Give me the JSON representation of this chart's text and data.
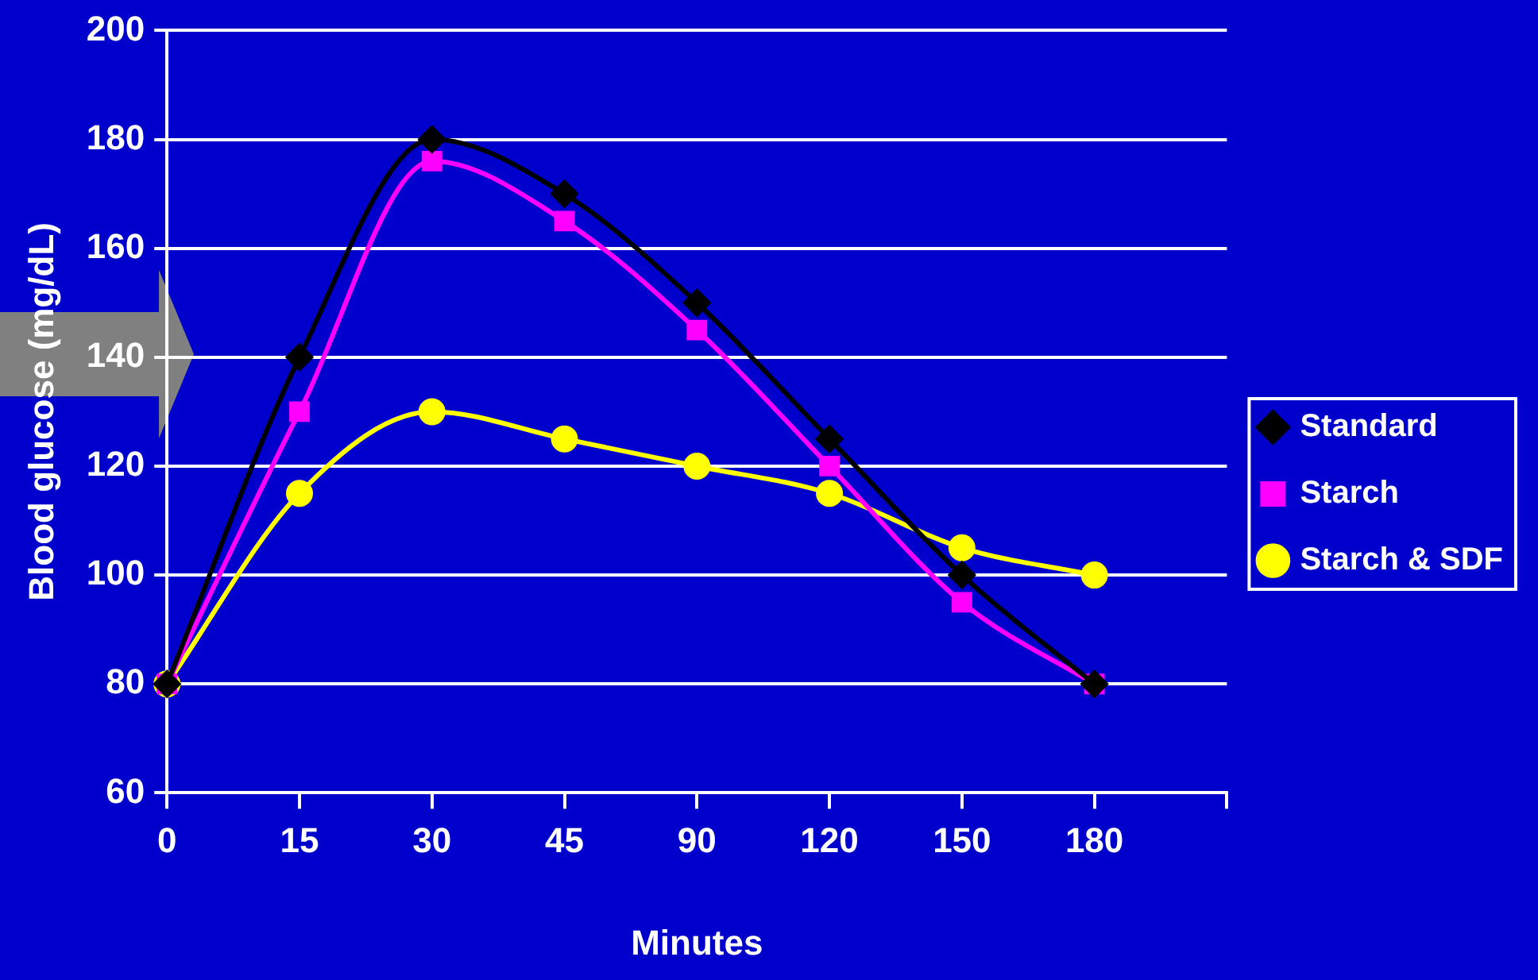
{
  "chart_data": {
    "type": "line",
    "xlabel": "Minutes",
    "ylabel": "Blood glucose (mg/dL)",
    "categories": [
      "0",
      "15",
      "30",
      "45",
      "90",
      "120",
      "150",
      "180",
      null
    ],
    "series": [
      {
        "name": "Standard",
        "color": "#000000",
        "marker": "diamond",
        "values": [
          80,
          140,
          180,
          170,
          150,
          125,
          100,
          80,
          null
        ]
      },
      {
        "name": "Starch",
        "color": "#ff00ff",
        "marker": "square",
        "values": [
          80,
          130,
          176,
          165,
          145,
          120,
          95,
          80,
          null
        ]
      },
      {
        "name": "Starch & SDF",
        "color": "#ffff00",
        "marker": "circle",
        "values": [
          80,
          115,
          130,
          125,
          120,
          115,
          105,
          100,
          null
        ]
      }
    ],
    "ylim": [
      60,
      200
    ],
    "yticks": [
      60,
      80,
      100,
      120,
      140,
      160,
      180,
      200
    ],
    "grid": "y",
    "legend": "right"
  }
}
